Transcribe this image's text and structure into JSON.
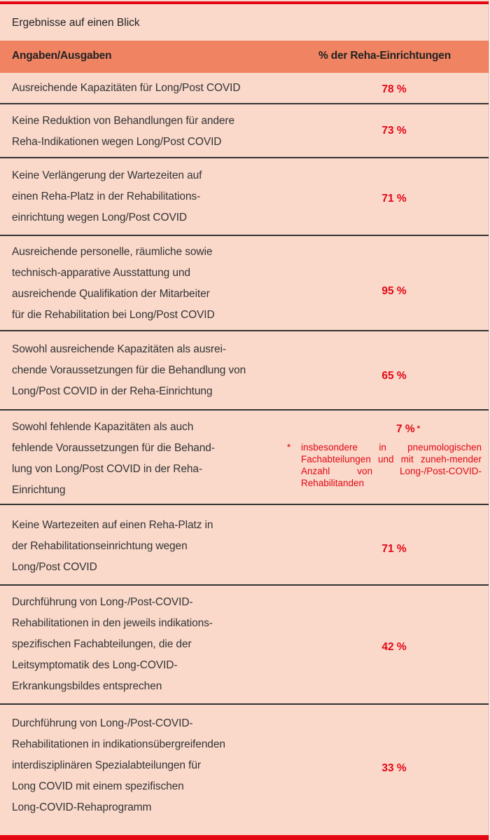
{
  "title": "Ergebnisse auf einen Blick",
  "header": {
    "col1": "Angaben/Ausgaben",
    "col2": "% der Reha-Einrichtungen"
  },
  "rows": [
    {
      "label": "Ausreichende Kapazitäten für Long/Post COVID",
      "value": "78 %"
    },
    {
      "label": "Keine Reduktion von Behandlungen für andere\nReha-Indikationen wegen Long/Post COVID",
      "value": "73 %"
    },
    {
      "label": "Keine Verlängerung der Wartezeiten auf\neinen Reha-Platz in der Rehabilitations-\neinrichtung wegen Long/Post COVID",
      "value": "71 %"
    },
    {
      "label": "Ausreichende personelle, räumliche sowie\ntechnisch-apparative Ausstattung und\nausreichende Qualifikation der Mitarbeiter\nfür die Rehabilitation bei Long/Post COVID",
      "value": "95 %"
    },
    {
      "label": "Sowohl ausreichende Kapazitäten als ausrei-\nchende Voraussetzungen für die Behandlung von\nLong/Post COVID in der Reha-Einrichtung",
      "value": "65 %"
    },
    {
      "label": "Sowohl fehlende Kapazitäten als auch\nfehlende Voraussetzungen für die Behand-\nlung von Long/Post COVID in der Reha-\nEinrichtung",
      "value": "7 %",
      "marker": "*",
      "footnote": "insbesondere in pneumologischen Fachabteilungen und mit zuneh-mender Anzahl von Long-/Post-COVID-Rehabilitanden"
    },
    {
      "label": "Keine Wartezeiten auf einen Reha-Platz in\nder Rehabilitationseinrichtung wegen\nLong/Post COVID",
      "value": "71 %"
    },
    {
      "label": "Durchführung von Long-/Post-COVID-\nRehabilitationen in den jeweils indikations-\nspezifischen Fachabteilungen, die der\nLeitsymptomatik des Long-COVID-\nErkrankungsbildes entsprechen",
      "value": "42 %"
    },
    {
      "label": "Durchführung von Long-/Post-COVID-\nRehabilitationen in indikationsübergreifenden\ninterdisziplinären Spezialabteilungen für\nLong COVID mit einem spezifischen\nLong-COVID-Rehaprogramm",
      "value": "33 %"
    }
  ]
}
